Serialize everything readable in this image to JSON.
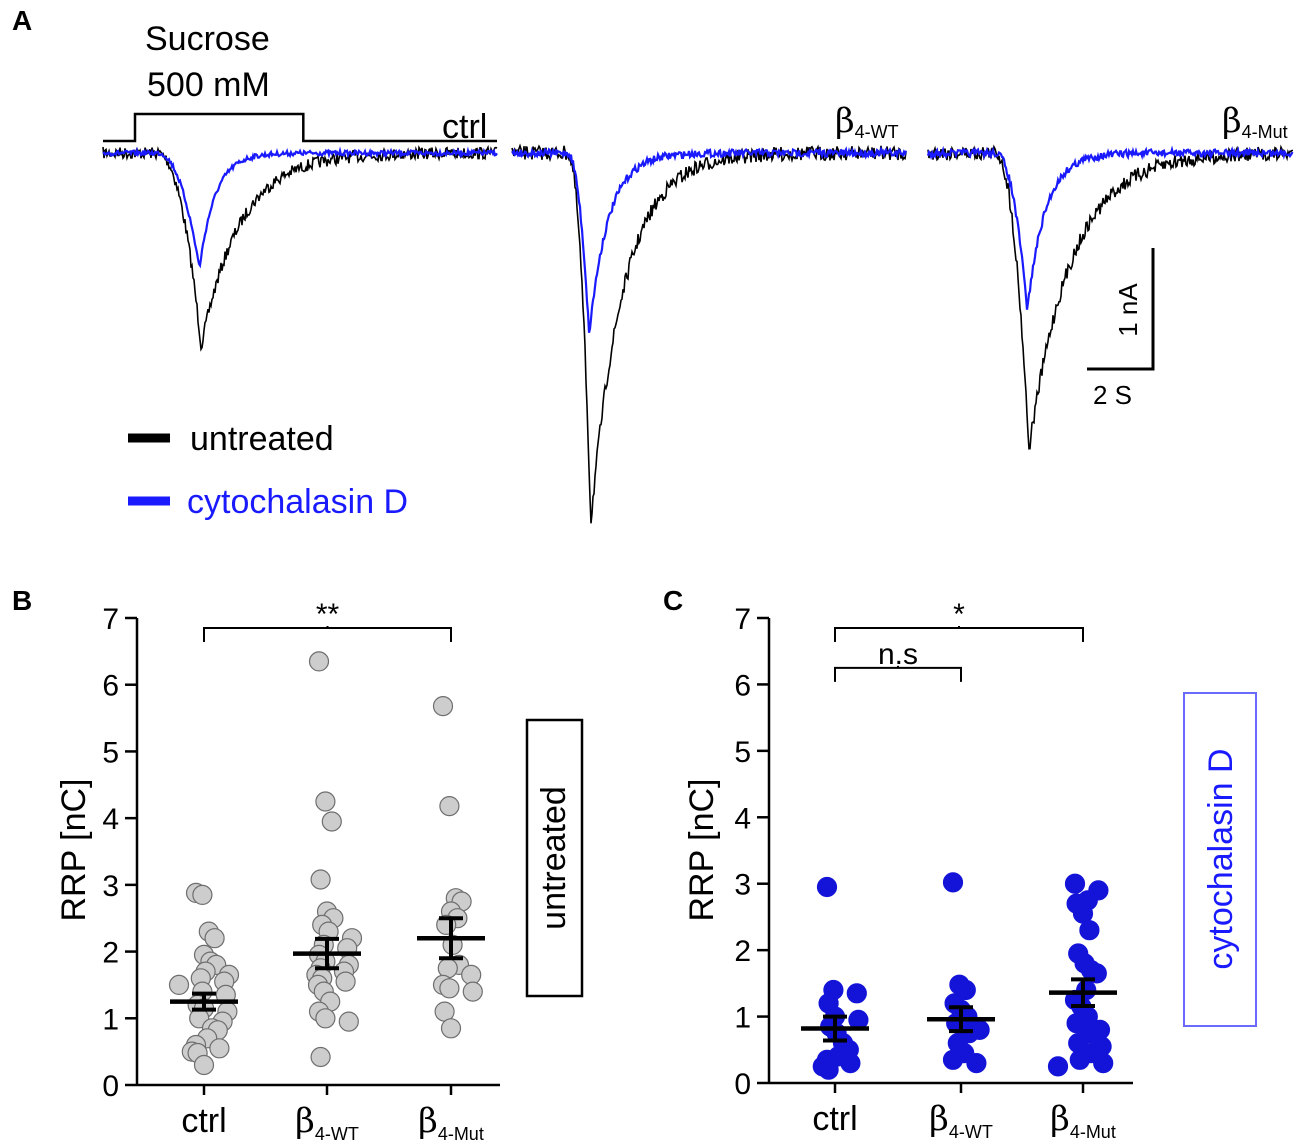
{
  "figure": {
    "panel_letters": [
      "A",
      "B",
      "C"
    ]
  },
  "colors": {
    "untreated": "#000000",
    "cytochalasin": "#1a1aff",
    "gray_point": "#cdcdcd",
    "gray_edge": "#6e6e6e",
    "blue_point": "#1414d8"
  },
  "chart_data": [
    {
      "panel": "A",
      "type": "line",
      "title": "",
      "stimulus": {
        "line1": "Sucrose",
        "line2": "500 mM",
        "onset_s": 0.0,
        "duration_s": 4.5
      },
      "legend": {
        "untreated": "untreated",
        "cytochalasin": "cytochalasin D"
      },
      "scale_bar": {
        "current": "1 nA",
        "time": "2 S",
        "current_nA": 1,
        "time_s": 2
      },
      "series": [
        {
          "name": "ctrl",
          "label_main": "ctrl",
          "label_sub": "",
          "untreated": {
            "peak_nA": -1.6,
            "time_to_peak_s": 1.3,
            "decay_s": 3.4,
            "noise_nA": 0.05
          },
          "cytochalasin": {
            "peak_nA": -0.95,
            "time_to_peak_s": 1.25,
            "decay_s": 1.4,
            "noise_nA": 0.02
          }
        },
        {
          "name": "beta4-WT",
          "label_main": "β",
          "label_sub": "4-WT",
          "untreated": {
            "peak_nA": -3.05,
            "time_to_peak_s": 0.7,
            "decay_s": 2.9,
            "noise_nA": 0.06
          },
          "cytochalasin": {
            "peak_nA": -1.5,
            "time_to_peak_s": 0.65,
            "decay_s": 1.7,
            "noise_nA": 0.03
          }
        },
        {
          "name": "beta4-Mut",
          "label_main": "β",
          "label_sub": "4-Mut",
          "untreated": {
            "peak_nA": -2.45,
            "time_to_peak_s": 1.0,
            "decay_s": 3.7,
            "noise_nA": 0.06
          },
          "cytochalasin": {
            "peak_nA": -1.3,
            "time_to_peak_s": 0.95,
            "decay_s": 1.6,
            "noise_nA": 0.03
          }
        }
      ]
    },
    {
      "panel": "B",
      "type": "scatter",
      "ylabel": "RRP [nC]",
      "ylim": [
        0,
        7
      ],
      "yticks": [
        "0",
        "1",
        "2",
        "3",
        "4",
        "5",
        "6",
        "7"
      ],
      "categories": [
        {
          "main": "ctrl",
          "sub": ""
        },
        {
          "main": "β",
          "sub": "4-WT"
        },
        {
          "main": "β",
          "sub": "4-Mut"
        }
      ],
      "side_label": "untreated",
      "significance": [
        {
          "from": 0,
          "to": 2,
          "text": "**",
          "y": 6.85
        }
      ],
      "series": [
        {
          "name": "ctrl",
          "mean": 1.25,
          "sem": 0.12,
          "values": [
            2.88,
            2.85,
            2.3,
            2.2,
            1.95,
            1.85,
            1.8,
            1.7,
            1.65,
            1.6,
            1.55,
            1.5,
            1.4,
            1.35,
            1.2,
            1.15,
            1.1,
            1.0,
            0.95,
            0.85,
            0.82,
            0.7,
            0.6,
            0.55,
            0.5,
            0.48,
            0.3
          ]
        },
        {
          "name": "beta4-WT",
          "mean": 1.97,
          "sem": 0.22,
          "values": [
            6.35,
            4.25,
            3.95,
            3.08,
            2.6,
            2.5,
            2.4,
            2.3,
            2.2,
            2.1,
            2.05,
            1.95,
            1.85,
            1.8,
            1.75,
            1.7,
            1.65,
            1.6,
            1.55,
            1.5,
            1.4,
            1.25,
            1.1,
            1.0,
            0.95,
            0.42
          ]
        },
        {
          "name": "beta4-Mut",
          "mean": 2.2,
          "sem": 0.3,
          "values": [
            5.68,
            4.18,
            2.8,
            2.75,
            2.6,
            2.5,
            2.4,
            2.1,
            1.8,
            1.75,
            1.65,
            1.5,
            1.45,
            1.4,
            1.1,
            0.85
          ]
        }
      ]
    },
    {
      "panel": "C",
      "type": "scatter",
      "ylabel": "RRP [nC]",
      "ylim": [
        0,
        7
      ],
      "yticks": [
        "0",
        "1",
        "2",
        "3",
        "4",
        "5",
        "6",
        "7"
      ],
      "categories": [
        {
          "main": "ctrl",
          "sub": ""
        },
        {
          "main": "β",
          "sub": "4-WT"
        },
        {
          "main": "β",
          "sub": "4-Mut"
        }
      ],
      "side_label": "cytochalasin D",
      "significance": [
        {
          "from": 0,
          "to": 1,
          "text": "n.s",
          "y": 6.25
        },
        {
          "from": 0,
          "to": 2,
          "text": "*",
          "y": 6.85
        }
      ],
      "series": [
        {
          "name": "ctrl",
          "mean": 0.82,
          "sem": 0.18,
          "values": [
            2.95,
            1.4,
            1.35,
            1.2,
            1.0,
            0.95,
            0.85,
            0.75,
            0.6,
            0.5,
            0.4,
            0.35,
            0.3,
            0.25,
            0.2
          ]
        },
        {
          "name": "beta4-WT",
          "mean": 0.96,
          "sem": 0.18,
          "values": [
            3.02,
            1.48,
            1.4,
            1.2,
            1.1,
            1.0,
            0.9,
            0.8,
            0.75,
            0.6,
            0.45,
            0.35,
            0.3
          ]
        },
        {
          "name": "beta4-Mut",
          "mean": 1.36,
          "sem": 0.2,
          "values": [
            3.0,
            2.9,
            2.75,
            2.7,
            2.55,
            2.3,
            1.95,
            1.8,
            1.7,
            1.65,
            1.4,
            1.25,
            1.15,
            1.0,
            0.9,
            0.8,
            0.75,
            0.6,
            0.55,
            0.45,
            0.35,
            0.3,
            0.25
          ]
        }
      ]
    }
  ]
}
